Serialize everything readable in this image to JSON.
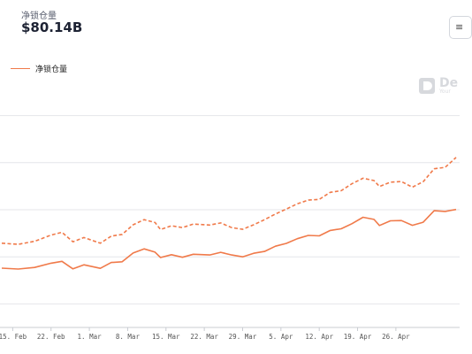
{
  "header": {
    "label": "净锁仓量",
    "value": "$80.14B",
    "corner_button": "≡"
  },
  "watermark": {
    "name": "De",
    "sub": "Your"
  },
  "colors": {
    "series": "#f07a4a",
    "grid": "#e4e6ea",
    "axis": "#c9ccd2"
  },
  "chart_data": {
    "type": "line",
    "title": "",
    "xlabel": "",
    "ylabel": "",
    "x_ticks": [
      "15. Feb",
      "22. Feb",
      "1. Mar",
      "8. Mar",
      "15. Mar",
      "22. Mar",
      "29. Mar",
      "5. Apr",
      "12. Apr",
      "19. Apr",
      "26. Apr"
    ],
    "x_index_range": [
      0,
      83
    ],
    "series": [
      {
        "name": "净锁仓量",
        "style": "solid",
        "values": [
          [
            0,
            55.2
          ],
          [
            3,
            54.8
          ],
          [
            6,
            55.5
          ],
          [
            9,
            57.3
          ],
          [
            11,
            58.1
          ],
          [
            13,
            54.9
          ],
          [
            15,
            56.6
          ],
          [
            18,
            55.1
          ],
          [
            20,
            57.6
          ],
          [
            22,
            57.9
          ],
          [
            24,
            61.6
          ],
          [
            26,
            63.4
          ],
          [
            28,
            62.0
          ],
          [
            29,
            59.7
          ],
          [
            31,
            60.9
          ],
          [
            33,
            59.8
          ],
          [
            35,
            61.1
          ],
          [
            38,
            60.8
          ],
          [
            40,
            61.9
          ],
          [
            42,
            60.8
          ],
          [
            44,
            60.0
          ],
          [
            46,
            61.5
          ],
          [
            48,
            62.3
          ],
          [
            50,
            64.5
          ],
          [
            52,
            65.7
          ],
          [
            54,
            67.7
          ],
          [
            56,
            69.1
          ],
          [
            58,
            68.9
          ],
          [
            60,
            71.2
          ],
          [
            62,
            71.9
          ],
          [
            64,
            74.1
          ],
          [
            66,
            76.8
          ],
          [
            68,
            75.9
          ],
          [
            69,
            73.3
          ],
          [
            71,
            75.3
          ],
          [
            73,
            75.4
          ],
          [
            75,
            73.4
          ],
          [
            77,
            74.7
          ],
          [
            79,
            79.6
          ],
          [
            81,
            79.3
          ],
          [
            83,
            80.1
          ]
        ]
      },
      {
        "name": "",
        "style": "dashed",
        "values": [
          [
            0,
            65.8
          ],
          [
            3,
            65.3
          ],
          [
            6,
            66.6
          ],
          [
            9,
            69.2
          ],
          [
            11,
            70.4
          ],
          [
            13,
            66.4
          ],
          [
            15,
            68.2
          ],
          [
            18,
            65.8
          ],
          [
            20,
            68.8
          ],
          [
            22,
            69.5
          ],
          [
            24,
            73.6
          ],
          [
            26,
            75.8
          ],
          [
            28,
            74.6
          ],
          [
            29,
            71.6
          ],
          [
            31,
            73.2
          ],
          [
            33,
            72.4
          ],
          [
            35,
            73.9
          ],
          [
            38,
            73.5
          ],
          [
            40,
            74.4
          ],
          [
            42,
            72.4
          ],
          [
            44,
            71.7
          ],
          [
            46,
            73.6
          ],
          [
            48,
            75.8
          ],
          [
            50,
            78.2
          ],
          [
            52,
            80.3
          ],
          [
            54,
            82.5
          ],
          [
            56,
            84.1
          ],
          [
            58,
            84.4
          ],
          [
            60,
            87.4
          ],
          [
            62,
            88.1
          ],
          [
            64,
            91.1
          ],
          [
            66,
            93.4
          ],
          [
            68,
            92.4
          ],
          [
            69,
            89.9
          ],
          [
            71,
            91.7
          ],
          [
            73,
            92.0
          ],
          [
            75,
            89.6
          ],
          [
            77,
            91.9
          ],
          [
            79,
            97.4
          ],
          [
            81,
            98.0
          ],
          [
            83,
            102.2
          ]
        ]
      }
    ],
    "y_domain": [
      30,
      130
    ],
    "grid": true,
    "legend": "top-left"
  }
}
